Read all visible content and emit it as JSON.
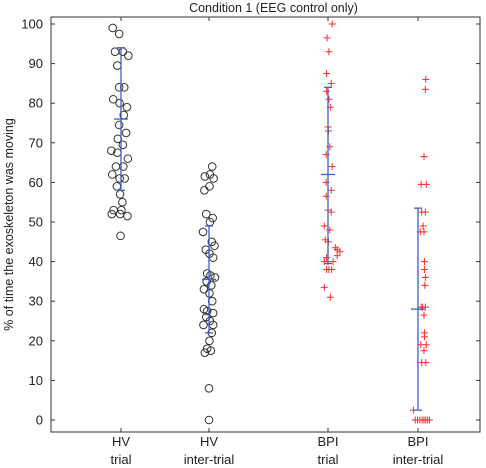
{
  "chart_data": {
    "type": "scatter",
    "title": "Condition 1 (EEG control only)",
    "ylabel": "% of time the exoskeleton was moving",
    "xlabel": "",
    "ylim": [
      0,
      100
    ],
    "yticks": [
      0,
      10,
      20,
      30,
      40,
      50,
      60,
      70,
      80,
      90,
      100
    ],
    "grid": false,
    "categories": [
      {
        "line1": "HV",
        "line2": "trial"
      },
      {
        "line1": "HV",
        "line2": "inter-trial"
      },
      {
        "line1": "BPI",
        "line2": "trial"
      },
      {
        "line1": "BPI",
        "line2": "inter-trial"
      }
    ],
    "colors": {
      "circle": "#333333",
      "plus": "#ff2a2a",
      "error": "#3a62c8",
      "axis": "#333333"
    },
    "series": [
      {
        "category": 0,
        "marker": "circle",
        "mean": 76,
        "lower": 58,
        "upper": 94,
        "values": [
          {
            "x": -1.8,
            "y": 99
          },
          {
            "x": -0.4,
            "y": 97.5
          },
          {
            "x": -1.3,
            "y": 93
          },
          {
            "x": 0.4,
            "y": 93
          },
          {
            "x": 1.6,
            "y": 92
          },
          {
            "x": -0.8,
            "y": 89.5
          },
          {
            "x": -0.4,
            "y": 84
          },
          {
            "x": 0.7,
            "y": 84
          },
          {
            "x": -1.7,
            "y": 81
          },
          {
            "x": -0.3,
            "y": 80
          },
          {
            "x": 1.3,
            "y": 79
          },
          {
            "x": 0.6,
            "y": 77
          },
          {
            "x": -0.4,
            "y": 74.5
          },
          {
            "x": 1.1,
            "y": 72.5
          },
          {
            "x": -0.7,
            "y": 71
          },
          {
            "x": 0.4,
            "y": 69.5
          },
          {
            "x": -2.1,
            "y": 68
          },
          {
            "x": -0.8,
            "y": 67.5
          },
          {
            "x": 1.5,
            "y": 66
          },
          {
            "x": -1.1,
            "y": 64
          },
          {
            "x": 0.5,
            "y": 64
          },
          {
            "x": -1.9,
            "y": 62
          },
          {
            "x": -0.3,
            "y": 61
          },
          {
            "x": 0.8,
            "y": 61
          },
          {
            "x": -0.9,
            "y": 59
          },
          {
            "x": -0.2,
            "y": 57
          },
          {
            "x": 0.3,
            "y": 55
          },
          {
            "x": -1.6,
            "y": 53
          },
          {
            "x": 0.1,
            "y": 53
          },
          {
            "x": -2.0,
            "y": 52
          },
          {
            "x": -0.2,
            "y": 52
          },
          {
            "x": 1.4,
            "y": 51.5
          },
          {
            "x": -0.1,
            "y": 46.5
          }
        ]
      },
      {
        "category": 1,
        "marker": "circle",
        "mean": 35.5,
        "lower": 22,
        "upper": 49,
        "values": [
          {
            "x": 0.7,
            "y": 64
          },
          {
            "x": 0.2,
            "y": 62
          },
          {
            "x": -0.9,
            "y": 61.5
          },
          {
            "x": 1.0,
            "y": 61
          },
          {
            "x": 0.1,
            "y": 59
          },
          {
            "x": -1.0,
            "y": 58
          },
          {
            "x": -0.6,
            "y": 52
          },
          {
            "x": 0.8,
            "y": 51
          },
          {
            "x": 0.2,
            "y": 50
          },
          {
            "x": -1.3,
            "y": 47.5
          },
          {
            "x": 0.6,
            "y": 45
          },
          {
            "x": 1.2,
            "y": 44
          },
          {
            "x": -0.7,
            "y": 43
          },
          {
            "x": 0.1,
            "y": 42
          },
          {
            "x": 0.9,
            "y": 41
          },
          {
            "x": -0.4,
            "y": 37
          },
          {
            "x": 0.3,
            "y": 36.5
          },
          {
            "x": 1.3,
            "y": 36
          },
          {
            "x": -0.5,
            "y": 35
          },
          {
            "x": 0.5,
            "y": 34
          },
          {
            "x": -1.1,
            "y": 33
          },
          {
            "x": 0.1,
            "y": 32
          },
          {
            "x": 0.7,
            "y": 30
          },
          {
            "x": -1.1,
            "y": 28
          },
          {
            "x": -0.4,
            "y": 27.5
          },
          {
            "x": 0.9,
            "y": 27
          },
          {
            "x": -0.6,
            "y": 26
          },
          {
            "x": 0.2,
            "y": 25
          },
          {
            "x": 0.9,
            "y": 24
          },
          {
            "x": -1.2,
            "y": 24
          },
          {
            "x": 0.6,
            "y": 22
          },
          {
            "x": 0.1,
            "y": 20
          },
          {
            "x": -0.4,
            "y": 18
          },
          {
            "x": -0.9,
            "y": 17
          },
          {
            "x": 0.4,
            "y": 17.5
          },
          {
            "x": 0.0,
            "y": 8
          },
          {
            "x": 0.0,
            "y": 0
          }
        ]
      },
      {
        "category": 2,
        "marker": "plus",
        "mean": 62,
        "lower": 39.5,
        "upper": 84,
        "values": [
          {
            "x": 0.9,
            "y": 100
          },
          {
            "x": -0.2,
            "y": 96.5
          },
          {
            "x": 0.2,
            "y": 93
          },
          {
            "x": -0.3,
            "y": 87.5
          },
          {
            "x": 0.7,
            "y": 85
          },
          {
            "x": -0.3,
            "y": 83
          },
          {
            "x": 0.2,
            "y": 81
          },
          {
            "x": 0.5,
            "y": 79
          },
          {
            "x": 0.0,
            "y": 74
          },
          {
            "x": 0.1,
            "y": 73
          },
          {
            "x": 0.4,
            "y": 69
          },
          {
            "x": -0.4,
            "y": 67
          },
          {
            "x": 0.9,
            "y": 64
          },
          {
            "x": -0.4,
            "y": 60
          },
          {
            "x": 0.7,
            "y": 58
          },
          {
            "x": -0.4,
            "y": 56.5
          },
          {
            "x": 0.0,
            "y": 53
          },
          {
            "x": 0.7,
            "y": 52.5
          },
          {
            "x": -0.8,
            "y": 49
          },
          {
            "x": 0.4,
            "y": 48
          },
          {
            "x": -0.6,
            "y": 45.5
          },
          {
            "x": 0.1,
            "y": 45
          },
          {
            "x": 1.6,
            "y": 43.5
          },
          {
            "x": 2.0,
            "y": 43
          },
          {
            "x": 2.6,
            "y": 42.5
          },
          {
            "x": 2.0,
            "y": 41.5
          },
          {
            "x": -0.3,
            "y": 41
          },
          {
            "x": 0.0,
            "y": 40
          },
          {
            "x": 1.1,
            "y": 40
          },
          {
            "x": -0.8,
            "y": 40
          },
          {
            "x": -0.3,
            "y": 38
          },
          {
            "x": 0.2,
            "y": 38
          },
          {
            "x": 0.8,
            "y": 38
          },
          {
            "x": -0.8,
            "y": 33.5
          },
          {
            "x": 0.5,
            "y": 31
          }
        ]
      },
      {
        "category": 3,
        "marker": "plus",
        "mean": 28,
        "lower": 2.5,
        "upper": 53.5,
        "values": [
          {
            "x": 1.7,
            "y": 86
          },
          {
            "x": 1.6,
            "y": 83.5
          },
          {
            "x": 1.3,
            "y": 66.5
          },
          {
            "x": 0.7,
            "y": 59.5
          },
          {
            "x": 1.8,
            "y": 59.5
          },
          {
            "x": 0.8,
            "y": 52.5
          },
          {
            "x": 1.6,
            "y": 52.5
          },
          {
            "x": 1.1,
            "y": 49
          },
          {
            "x": 0.5,
            "y": 47.5
          },
          {
            "x": 1.3,
            "y": 47.5
          },
          {
            "x": 1.4,
            "y": 40
          },
          {
            "x": 1.4,
            "y": 38
          },
          {
            "x": 1.6,
            "y": 36
          },
          {
            "x": 1.5,
            "y": 34
          },
          {
            "x": 0.7,
            "y": 28.5
          },
          {
            "x": 1.0,
            "y": 28.5
          },
          {
            "x": 1.6,
            "y": 28.5
          },
          {
            "x": 1.3,
            "y": 26.5
          },
          {
            "x": 1.4,
            "y": 22
          },
          {
            "x": 1.4,
            "y": 21
          },
          {
            "x": 0.6,
            "y": 19
          },
          {
            "x": 1.8,
            "y": 19
          },
          {
            "x": 1.3,
            "y": 17.5
          },
          {
            "x": 0.8,
            "y": 14.5
          },
          {
            "x": 1.7,
            "y": 14.5
          },
          {
            "x": -1.0,
            "y": 2.5
          },
          {
            "x": -0.6,
            "y": 0
          },
          {
            "x": -0.1,
            "y": 0
          },
          {
            "x": 0.4,
            "y": 0
          },
          {
            "x": 0.9,
            "y": 0
          },
          {
            "x": 1.3,
            "y": 0
          },
          {
            "x": 1.7,
            "y": 0
          },
          {
            "x": 2.1,
            "y": 0
          },
          {
            "x": 2.5,
            "y": 0
          }
        ]
      }
    ]
  }
}
